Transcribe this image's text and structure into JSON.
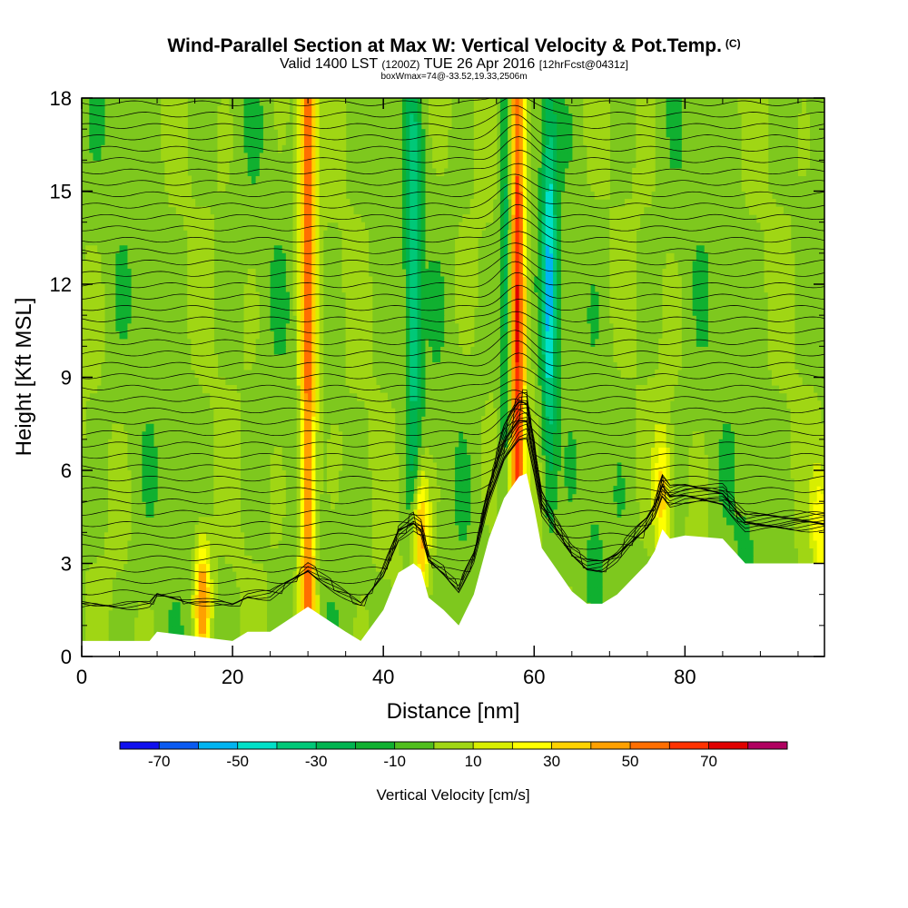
{
  "title": {
    "main": "Wind-Parallel Section at Max W: Vertical Velocity & Pot.Temp.",
    "copyright": "(C)",
    "valid_prefix": "Valid 1400 LST",
    "valid_utc": "(1200Z)",
    "valid_date": "TUE 26 Apr 2016",
    "forecast": "[12hrFcst@0431z]",
    "box_info": "boxWmax=74@-33.52,19.33,2506m"
  },
  "chart_data": {
    "type": "heatmap",
    "xlabel": "Distance [nm]",
    "ylabel": "Height [Kft MSL]",
    "xlim": [
      0,
      98.5
    ],
    "ylim": [
      0,
      18
    ],
    "xticks": [
      0,
      20,
      40,
      60,
      80
    ],
    "yticks": [
      0,
      3,
      6,
      9,
      12,
      15,
      18
    ],
    "x_tick_labels": [
      "0",
      "20",
      "40",
      "60",
      "80"
    ],
    "y_tick_labels": [
      "0",
      "3",
      "6",
      "9",
      "12",
      "15",
      "18"
    ],
    "terrain": {
      "x": [
        0,
        9,
        10,
        20,
        22,
        25,
        30,
        35,
        37,
        40,
        42,
        44,
        45,
        46,
        48,
        50,
        52,
        54,
        56,
        58,
        59,
        60,
        61,
        63,
        65,
        67,
        69,
        71,
        73,
        75,
        76,
        77,
        78,
        80,
        85,
        88,
        98.5
      ],
      "height": [
        0.5,
        0.5,
        0.8,
        0.5,
        0.8,
        0.8,
        1.6,
        0.8,
        0.5,
        1.5,
        2.7,
        3.0,
        2.8,
        1.9,
        1.5,
        1.0,
        2.0,
        3.8,
        5.1,
        5.8,
        5.9,
        4.8,
        3.5,
        2.8,
        2.1,
        1.7,
        1.7,
        2.0,
        2.5,
        3.0,
        3.4,
        4.1,
        3.8,
        3.9,
        3.8,
        3.0,
        3.0
      ]
    },
    "vertical_velocity_updraft_columns": [
      {
        "x": 16.0,
        "w": 55
      },
      {
        "x": 30.0,
        "w": 60
      },
      {
        "x": 45.0,
        "w": 50
      },
      {
        "x": 57.7,
        "w": 74
      },
      {
        "x": 77.0,
        "w": 35
      },
      {
        "x": 98.0,
        "w": 30
      }
    ],
    "vertical_velocity_downdraft_columns": [
      {
        "x": 44.0,
        "w": -35
      },
      {
        "x": 56.5,
        "w": -40
      },
      {
        "x": 62.0,
        "w": -45
      },
      {
        "x": 68.0,
        "w": -12
      },
      {
        "x": 88.0,
        "w": -12
      }
    ],
    "potential_temperature_isentropes_count": 48,
    "colorbar": {
      "title": "Vertical Velocity [cm/s]",
      "tick_labels": [
        "-70",
        "-50",
        "-30",
        "-10",
        "10",
        "30",
        "50",
        "70"
      ],
      "bin_edges": [
        -80,
        -70,
        -60,
        -50,
        -40,
        -30,
        -20,
        -10,
        0,
        10,
        20,
        30,
        40,
        50,
        60,
        70,
        80
      ],
      "colors": [
        "#1010ee",
        "#0a5af0",
        "#00b4f0",
        "#00e0c8",
        "#00c878",
        "#00b450",
        "#10b030",
        "#50be1e",
        "#a0d614",
        "#d8ee00",
        "#ffff00",
        "#ffd200",
        "#ffa000",
        "#ff6e00",
        "#ff3200",
        "#e00000",
        "#b00060"
      ]
    }
  }
}
